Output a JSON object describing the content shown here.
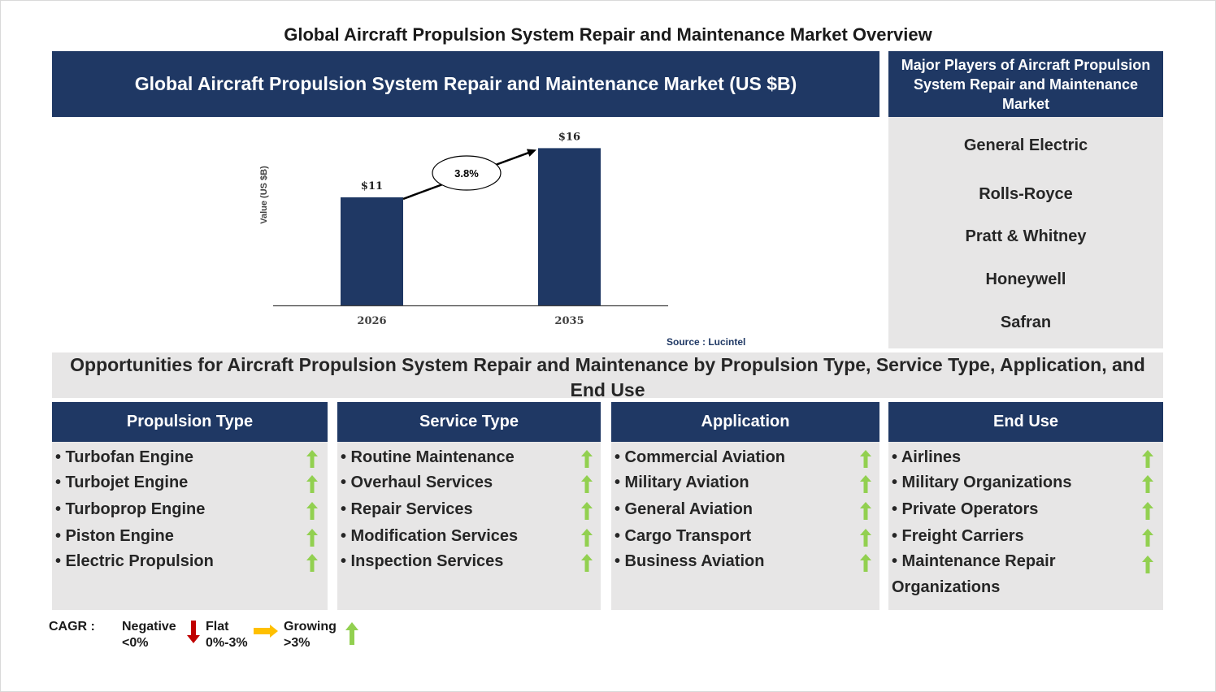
{
  "title": "Global Aircraft Propulsion System Repair and Maintenance Market Overview",
  "chart_header": "Global Aircraft Propulsion System Repair and Maintenance Market (US $B)",
  "players": {
    "header": "Major Players of Aircraft Propulsion System Repair and Maintenance Market",
    "items": [
      "General Electric",
      "Rolls-Royce",
      "Pratt & Whitney",
      "Honeywell",
      "Safran"
    ]
  },
  "chart_data": {
    "type": "bar",
    "categories": [
      "2026",
      "2035"
    ],
    "values": [
      11,
      16
    ],
    "value_labels": [
      "$11",
      "$16"
    ],
    "ylabel": "Value (US $B)",
    "cagr_label": "3.8%",
    "bar_color": "#1f3864"
  },
  "source": "Source : Lucintel",
  "opportunities_title": "Opportunities for Aircraft Propulsion System Repair and Maintenance by Propulsion Type, Service Type, Application, and End Use",
  "columns": [
    {
      "header": "Propulsion Type",
      "items": [
        "• Turbofan Engine",
        "• Turbojet Engine",
        "• Turboprop Engine",
        "• Piston Engine",
        "• Electric Propulsion"
      ]
    },
    {
      "header": "Service Type",
      "items": [
        "• Routine Maintenance",
        "• Overhaul Services",
        "• Repair Services",
        "• Modification Services",
        "• Inspection Services"
      ]
    },
    {
      "header": "Application",
      "items": [
        "• Commercial Aviation",
        "• Military Aviation",
        "• General Aviation",
        "• Cargo Transport",
        "• Business Aviation"
      ]
    },
    {
      "header": "End Use",
      "items": [
        "• Airlines",
        "• Military Organizations",
        "• Private Operators",
        "• Freight Carriers",
        "• Maintenance Repair Organizations"
      ]
    }
  ],
  "legend": {
    "label": "CAGR :",
    "negative": "Negative <0%",
    "flat": "Flat 0%-3%",
    "growing": "Growing >3%"
  },
  "colors": {
    "navy": "#1f3864",
    "panel_gray": "#e7e6e6",
    "growth_green": "#92d050",
    "negative_red": "#c00000",
    "flat_orange": "#ffc000"
  }
}
